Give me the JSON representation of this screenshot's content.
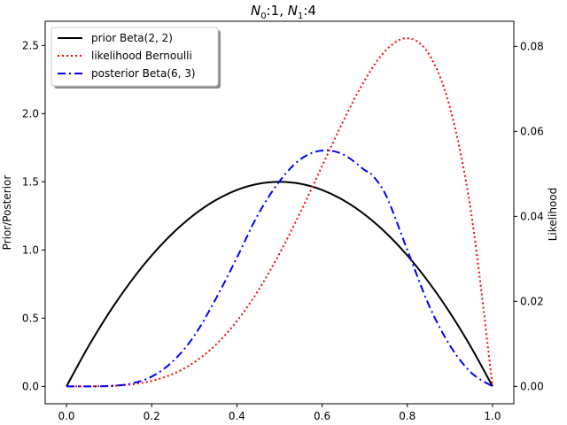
{
  "chart_data": {
    "type": "line",
    "title": {
      "prefix0": "N",
      "sub0": "0",
      "mid": ":1, ",
      "prefix1": "N",
      "sub1": "1",
      "suffix": ":4"
    },
    "ylabel_left": "Prior/Posterior",
    "ylabel_right": "Likelihood",
    "xlim": [
      -0.05,
      1.05
    ],
    "ylim_left": [
      -0.1275,
      2.6775
    ],
    "ylim_right": [
      -0.00409,
      0.08591
    ],
    "xticks": [
      "0.0",
      "0.2",
      "0.4",
      "0.6",
      "0.8",
      "1.0"
    ],
    "yticks_left": [
      "0.0",
      "0.5",
      "1.0",
      "1.5",
      "2.0",
      "2.5"
    ],
    "yticks_right": [
      "0.00",
      "0.02",
      "0.04",
      "0.06",
      "0.08"
    ],
    "legend_position": "upper-left",
    "series": [
      {
        "name": "prior Beta(2, 2)",
        "axis": "left",
        "color": "#000000",
        "dash": "solid",
        "x": [
          0.0,
          0.05,
          0.1,
          0.15,
          0.2,
          0.25,
          0.3,
          0.35,
          0.4,
          0.45,
          0.5,
          0.55,
          0.6,
          0.65,
          0.7,
          0.75,
          0.8,
          0.85,
          0.9,
          0.95,
          1.0
        ],
        "y": [
          0.0,
          0.285,
          0.54,
          0.765,
          0.96,
          1.125,
          1.26,
          1.365,
          1.44,
          1.485,
          1.5,
          1.485,
          1.44,
          1.365,
          1.26,
          1.125,
          0.96,
          0.765,
          0.54,
          0.285,
          0.0
        ]
      },
      {
        "name": "likelihood Bernoulli",
        "axis": "right",
        "color": "#ff0000",
        "dash": "dotted",
        "x": [
          0.0,
          0.05,
          0.1,
          0.15,
          0.2,
          0.25,
          0.3,
          0.35,
          0.4,
          0.45,
          0.5,
          0.55,
          0.6,
          0.65,
          0.7,
          0.75,
          0.8,
          0.85,
          0.9,
          0.95,
          1.0
        ],
        "y": [
          0.0,
          5.9e-06,
          9e-05,
          0.00043,
          0.00128,
          0.00293,
          0.00567,
          0.00975,
          0.01536,
          0.02255,
          0.03125,
          0.04118,
          0.05184,
          0.06247,
          0.07203,
          0.0791,
          0.08192,
          0.0783,
          0.06561,
          0.04073,
          0.0
        ]
      },
      {
        "name": "posterior Beta(6, 3)",
        "axis": "left",
        "color": "#0000ff",
        "dash": "dashdot",
        "x": [
          0.0,
          0.05,
          0.1,
          0.15,
          0.2,
          0.25,
          0.3,
          0.35,
          0.4,
          0.45,
          0.5,
          0.55,
          0.6,
          0.65,
          0.7,
          0.7143,
          0.75,
          0.8,
          0.85,
          0.9,
          0.95,
          1.0
        ],
        "y": [
          0.0,
          9.4e-05,
          0.00269,
          0.0195,
          0.0717,
          0.1846,
          0.3712,
          0.639,
          0.9437,
          1.2616,
          1.5039,
          1.6672,
          1.7297,
          1.7,
          1.5857,
          1.56,
          1.4,
          1.0,
          0.6,
          0.3,
          0.1,
          0.0
        ]
      }
    ]
  }
}
